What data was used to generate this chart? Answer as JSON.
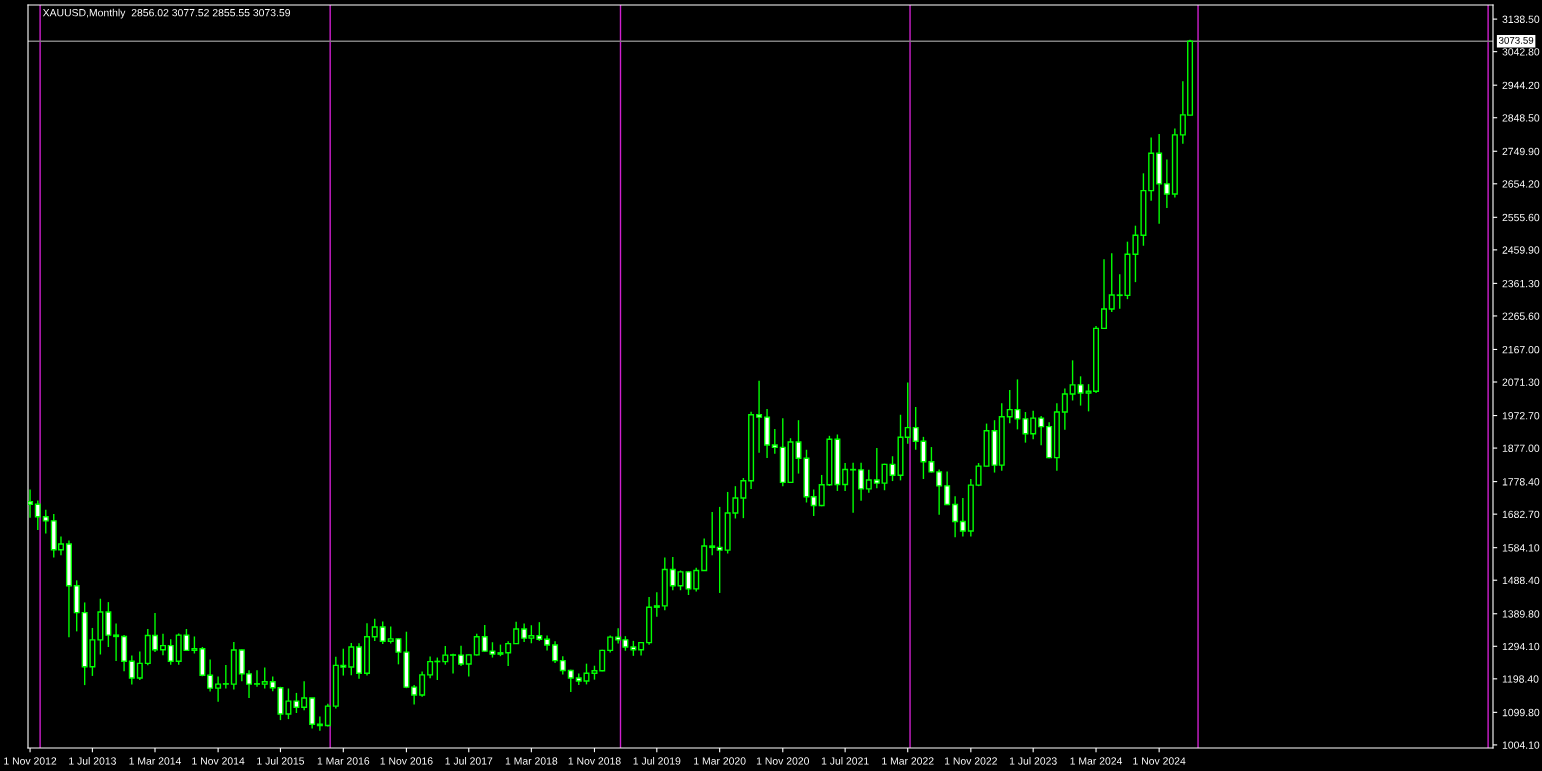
{
  "chart_data": {
    "type": "candlestick",
    "title": "XAUUSD,Monthly  2856.02 3077.52 2855.55 3073.59",
    "color": "#00ff00",
    "grid": false,
    "legend": false,
    "x": [
      "2012-11",
      "2012-12",
      "2013-01",
      "2013-02",
      "2013-03",
      "2013-04",
      "2013-05",
      "2013-06",
      "2013-07",
      "2013-08",
      "2013-09",
      "2013-10",
      "2013-11",
      "2013-12",
      "2014-01",
      "2014-02",
      "2014-03",
      "2014-04",
      "2014-05",
      "2014-06",
      "2014-07",
      "2014-08",
      "2014-09",
      "2014-10",
      "2014-11",
      "2014-12",
      "2015-01",
      "2015-02",
      "2015-03",
      "2015-04",
      "2015-05",
      "2015-06",
      "2015-07",
      "2015-08",
      "2015-09",
      "2015-10",
      "2015-11",
      "2015-12",
      "2016-01",
      "2016-02",
      "2016-03",
      "2016-04",
      "2016-05",
      "2016-06",
      "2016-07",
      "2016-08",
      "2016-09",
      "2016-10",
      "2016-11",
      "2016-12",
      "2017-01",
      "2017-02",
      "2017-03",
      "2017-04",
      "2017-05",
      "2017-06",
      "2017-07",
      "2017-08",
      "2017-09",
      "2017-10",
      "2017-11",
      "2017-12",
      "2018-01",
      "2018-02",
      "2018-03",
      "2018-04",
      "2018-05",
      "2018-06",
      "2018-07",
      "2018-08",
      "2018-09",
      "2018-10",
      "2018-11",
      "2018-12",
      "2019-01",
      "2019-02",
      "2019-03",
      "2019-04",
      "2019-05",
      "2019-06",
      "2019-07",
      "2019-08",
      "2019-09",
      "2019-10",
      "2019-11",
      "2019-12",
      "2020-01",
      "2020-02",
      "2020-03",
      "2020-04",
      "2020-05",
      "2020-06",
      "2020-07",
      "2020-08",
      "2020-09",
      "2020-10",
      "2020-11",
      "2020-12",
      "2021-01",
      "2021-02",
      "2021-03",
      "2021-04",
      "2021-05",
      "2021-06",
      "2021-07",
      "2021-08",
      "2021-09",
      "2021-10",
      "2021-11",
      "2021-12",
      "2022-01",
      "2022-02",
      "2022-03",
      "2022-04",
      "2022-05",
      "2022-06",
      "2022-07",
      "2022-08",
      "2022-09",
      "2022-10",
      "2022-11",
      "2022-12",
      "2023-01",
      "2023-02",
      "2023-03",
      "2023-04",
      "2023-05",
      "2023-06",
      "2023-07",
      "2023-08",
      "2023-09",
      "2023-10",
      "2023-11",
      "2023-12",
      "2024-01",
      "2024-02",
      "2024-03",
      "2024-04",
      "2024-05",
      "2024-06",
      "2024-07",
      "2024-08",
      "2024-09",
      "2024-10",
      "2024-11",
      "2024-12",
      "2025-01",
      "2025-02",
      "2025-03"
    ],
    "ohlc": [
      [
        1719,
        1755,
        1672,
        1712
      ],
      [
        1712,
        1723,
        1636,
        1675
      ],
      [
        1675,
        1696,
        1626,
        1663
      ],
      [
        1663,
        1683,
        1555,
        1578
      ],
      [
        1578,
        1617,
        1562,
        1595
      ],
      [
        1595,
        1605,
        1321,
        1472
      ],
      [
        1472,
        1488,
        1338,
        1393
      ],
      [
        1393,
        1423,
        1180,
        1234
      ],
      [
        1234,
        1348,
        1207,
        1313
      ],
      [
        1313,
        1434,
        1270,
        1395
      ],
      [
        1395,
        1424,
        1292,
        1327
      ],
      [
        1327,
        1361,
        1251,
        1323
      ],
      [
        1323,
        1327,
        1221,
        1250
      ],
      [
        1250,
        1267,
        1182,
        1201
      ],
      [
        1201,
        1279,
        1195,
        1244
      ],
      [
        1244,
        1345,
        1238,
        1326
      ],
      [
        1326,
        1392,
        1277,
        1284
      ],
      [
        1284,
        1331,
        1268,
        1296
      ],
      [
        1296,
        1315,
        1240,
        1250
      ],
      [
        1250,
        1332,
        1240,
        1327
      ],
      [
        1327,
        1345,
        1281,
        1282
      ],
      [
        1282,
        1323,
        1273,
        1287
      ],
      [
        1287,
        1292,
        1206,
        1209
      ],
      [
        1209,
        1255,
        1161,
        1171
      ],
      [
        1171,
        1205,
        1131,
        1183
      ],
      [
        1183,
        1239,
        1170,
        1183
      ],
      [
        1183,
        1307,
        1167,
        1283
      ],
      [
        1283,
        1285,
        1191,
        1213
      ],
      [
        1213,
        1224,
        1142,
        1183
      ],
      [
        1183,
        1224,
        1175,
        1183
      ],
      [
        1183,
        1232,
        1170,
        1190
      ],
      [
        1190,
        1205,
        1162,
        1172
      ],
      [
        1172,
        1175,
        1077,
        1095
      ],
      [
        1095,
        1170,
        1080,
        1133
      ],
      [
        1133,
        1157,
        1098,
        1115
      ],
      [
        1115,
        1191,
        1106,
        1142
      ],
      [
        1142,
        1142,
        1052,
        1065
      ],
      [
        1065,
        1088,
        1046,
        1061
      ],
      [
        1061,
        1125,
        1058,
        1118
      ],
      [
        1118,
        1263,
        1111,
        1238
      ],
      [
        1238,
        1287,
        1208,
        1233
      ],
      [
        1233,
        1304,
        1209,
        1292
      ],
      [
        1292,
        1303,
        1199,
        1215
      ],
      [
        1215,
        1362,
        1208,
        1322
      ],
      [
        1322,
        1375,
        1310,
        1351
      ],
      [
        1351,
        1367,
        1301,
        1309
      ],
      [
        1309,
        1352,
        1302,
        1316
      ],
      [
        1316,
        1318,
        1241,
        1277
      ],
      [
        1277,
        1337,
        1171,
        1174
      ],
      [
        1174,
        1180,
        1123,
        1151
      ],
      [
        1151,
        1220,
        1146,
        1210
      ],
      [
        1210,
        1264,
        1200,
        1249
      ],
      [
        1249,
        1261,
        1195,
        1249
      ],
      [
        1249,
        1295,
        1240,
        1268
      ],
      [
        1268,
        1272,
        1214,
        1268
      ],
      [
        1268,
        1296,
        1236,
        1242
      ],
      [
        1242,
        1270,
        1205,
        1269
      ],
      [
        1269,
        1331,
        1267,
        1322
      ],
      [
        1322,
        1357,
        1278,
        1280
      ],
      [
        1280,
        1306,
        1261,
        1271
      ],
      [
        1271,
        1299,
        1265,
        1275
      ],
      [
        1275,
        1309,
        1236,
        1302
      ],
      [
        1302,
        1366,
        1301,
        1345
      ],
      [
        1345,
        1361,
        1307,
        1318
      ],
      [
        1318,
        1356,
        1303,
        1325
      ],
      [
        1325,
        1365,
        1310,
        1315
      ],
      [
        1315,
        1326,
        1282,
        1298
      ],
      [
        1298,
        1309,
        1245,
        1252
      ],
      [
        1252,
        1265,
        1211,
        1223
      ],
      [
        1223,
        1225,
        1160,
        1201
      ],
      [
        1201,
        1214,
        1180,
        1192
      ],
      [
        1192,
        1243,
        1182,
        1215
      ],
      [
        1215,
        1237,
        1196,
        1222
      ],
      [
        1222,
        1284,
        1221,
        1282
      ],
      [
        1282,
        1326,
        1276,
        1321
      ],
      [
        1321,
        1347,
        1302,
        1313
      ],
      [
        1313,
        1324,
        1281,
        1292
      ],
      [
        1292,
        1310,
        1266,
        1284
      ],
      [
        1284,
        1306,
        1267,
        1305
      ],
      [
        1305,
        1439,
        1299,
        1409
      ],
      [
        1409,
        1453,
        1381,
        1413
      ],
      [
        1413,
        1555,
        1400,
        1520
      ],
      [
        1520,
        1557,
        1459,
        1472
      ],
      [
        1472,
        1517,
        1459,
        1513
      ],
      [
        1513,
        1515,
        1445,
        1463
      ],
      [
        1463,
        1525,
        1455,
        1517
      ],
      [
        1517,
        1611,
        1517,
        1589
      ],
      [
        1589,
        1689,
        1562,
        1585
      ],
      [
        1585,
        1704,
        1451,
        1577
      ],
      [
        1577,
        1748,
        1567,
        1686
      ],
      [
        1686,
        1765,
        1670,
        1730
      ],
      [
        1730,
        1789,
        1671,
        1781
      ],
      [
        1781,
        1984,
        1757,
        1975
      ],
      [
        1975,
        2075,
        1863,
        1968
      ],
      [
        1968,
        1992,
        1848,
        1886
      ],
      [
        1886,
        1933,
        1860,
        1879
      ],
      [
        1879,
        1965,
        1765,
        1776
      ],
      [
        1776,
        1906,
        1775,
        1895
      ],
      [
        1895,
        1959,
        1802,
        1847
      ],
      [
        1847,
        1872,
        1717,
        1734
      ],
      [
        1734,
        1755,
        1677,
        1708
      ],
      [
        1708,
        1798,
        1706,
        1769
      ],
      [
        1769,
        1913,
        1766,
        1903
      ],
      [
        1903,
        1917,
        1751,
        1770
      ],
      [
        1770,
        1833,
        1751,
        1814
      ],
      [
        1814,
        1834,
        1687,
        1813
      ],
      [
        1813,
        1834,
        1722,
        1757
      ],
      [
        1757,
        1813,
        1746,
        1783
      ],
      [
        1783,
        1877,
        1759,
        1774
      ],
      [
        1774,
        1831,
        1753,
        1829
      ],
      [
        1829,
        1853,
        1780,
        1797
      ],
      [
        1797,
        1975,
        1782,
        1909
      ],
      [
        1909,
        2070,
        1890,
        1937
      ],
      [
        1937,
        1998,
        1872,
        1897
      ],
      [
        1897,
        1910,
        1786,
        1837
      ],
      [
        1837,
        1880,
        1805,
        1807
      ],
      [
        1807,
        1814,
        1681,
        1766
      ],
      [
        1766,
        1808,
        1710,
        1711
      ],
      [
        1711,
        1735,
        1615,
        1661
      ],
      [
        1661,
        1730,
        1617,
        1633
      ],
      [
        1633,
        1786,
        1617,
        1768
      ],
      [
        1768,
        1833,
        1765,
        1824
      ],
      [
        1824,
        1949,
        1823,
        1928
      ],
      [
        1928,
        1959,
        1805,
        1827
      ],
      [
        1827,
        2009,
        1810,
        1969
      ],
      [
        1969,
        2048,
        1950,
        1990
      ],
      [
        1990,
        2079,
        1932,
        1963
      ],
      [
        1963,
        1983,
        1893,
        1919
      ],
      [
        1919,
        1987,
        1903,
        1965
      ],
      [
        1965,
        1971,
        1885,
        1940
      ],
      [
        1940,
        1953,
        1847,
        1849
      ],
      [
        1849,
        2009,
        1810,
        1983
      ],
      [
        1983,
        2052,
        1931,
        2036
      ],
      [
        2036,
        2135,
        2017,
        2063
      ],
      [
        2063,
        2088,
        2002,
        2039
      ],
      [
        2039,
        2065,
        1985,
        2044
      ],
      [
        2044,
        2236,
        2039,
        2229
      ],
      [
        2229,
        2432,
        2228,
        2286
      ],
      [
        2286,
        2450,
        2277,
        2327
      ],
      [
        2327,
        2388,
        2287,
        2326
      ],
      [
        2326,
        2484,
        2315,
        2447
      ],
      [
        2447,
        2531,
        2365,
        2503
      ],
      [
        2503,
        2685,
        2472,
        2634
      ],
      [
        2634,
        2790,
        2604,
        2744
      ],
      [
        2744,
        2801,
        2537,
        2654
      ],
      [
        2654,
        2726,
        2583,
        2624
      ],
      [
        2624,
        2817,
        2614,
        2798
      ],
      [
        2798,
        2956,
        2772,
        2857
      ],
      [
        2856.02,
        3077.52,
        2855.55,
        3073.59
      ]
    ],
    "xlim": [
      "2012-10-24",
      "2028-05-20"
    ],
    "xticks": [
      {
        "value": "2012-11",
        "label": "1 Nov 2012"
      },
      {
        "value": "2013-07",
        "label": "1 Jul 2013"
      },
      {
        "value": "2014-03",
        "label": "1 Mar 2014"
      },
      {
        "value": "2014-11",
        "label": "1 Nov 2014"
      },
      {
        "value": "2015-07",
        "label": "1 Jul 2015"
      },
      {
        "value": "2016-03",
        "label": "1 Mar 2016"
      },
      {
        "value": "2016-11",
        "label": "1 Nov 2016"
      },
      {
        "value": "2017-07",
        "label": "1 Jul 2017"
      },
      {
        "value": "2018-03",
        "label": "1 Mar 2018"
      },
      {
        "value": "2018-11",
        "label": "1 Nov 2018"
      },
      {
        "value": "2019-07",
        "label": "1 Jul 2019"
      },
      {
        "value": "2020-03",
        "label": "1 Mar 2020"
      },
      {
        "value": "2020-11",
        "label": "1 Nov 2020"
      },
      {
        "value": "2021-07",
        "label": "1 Jul 2021"
      },
      {
        "value": "2022-03",
        "label": "1 Mar 2022"
      },
      {
        "value": "2022-11",
        "label": "1 Nov 2022"
      },
      {
        "value": "2023-07",
        "label": "1 Jul 2023"
      },
      {
        "value": "2024-03",
        "label": "1 Mar 2024"
      },
      {
        "value": "2024-11",
        "label": "1 Nov 2024"
      }
    ],
    "ylim": [
      995,
      3180
    ],
    "yticks": [
      {
        "value": 1004.1,
        "label": "1004.10"
      },
      {
        "value": 1099.8,
        "label": "1099.80"
      },
      {
        "value": 1198.4,
        "label": "1198.40"
      },
      {
        "value": 1294.1,
        "label": "1294.10"
      },
      {
        "value": 1389.8,
        "label": "1389.80"
      },
      {
        "value": 1488.4,
        "label": "1488.40"
      },
      {
        "value": 1584.1,
        "label": "1584.10"
      },
      {
        "value": 1682.7,
        "label": "1682.70"
      },
      {
        "value": 1778.4,
        "label": "1778.40"
      },
      {
        "value": 1877.0,
        "label": "1877.00"
      },
      {
        "value": 1972.7,
        "label": "1972.70"
      },
      {
        "value": 2071.3,
        "label": "2071.30"
      },
      {
        "value": 2167.0,
        "label": "2167.00"
      },
      {
        "value": 2265.6,
        "label": "2265.60"
      },
      {
        "value": 2361.3,
        "label": "2361.30"
      },
      {
        "value": 2459.9,
        "label": "2459.90"
      },
      {
        "value": 2555.6,
        "label": "2555.60"
      },
      {
        "value": 2654.2,
        "label": "2654.20"
      },
      {
        "value": 2749.9,
        "label": "2749.90"
      },
      {
        "value": 2848.5,
        "label": "2848.50"
      },
      {
        "value": 2944.2,
        "label": "2944.20"
      },
      {
        "value": 3042.8,
        "label": "3042.80"
      },
      {
        "value": 3138.5,
        "label": "3138.50"
      }
    ],
    "ref_lines": [
      {
        "axis": "x",
        "value": "2012-12-10",
        "color": "#d020d0"
      },
      {
        "axis": "x",
        "value": "2016-01-10",
        "color": "#d020d0"
      },
      {
        "axis": "x",
        "value": "2019-02-10",
        "color": "#d020d0"
      },
      {
        "axis": "x",
        "value": "2022-03-10",
        "color": "#d020d0"
      },
      {
        "axis": "x",
        "value": "2025-04",
        "color": "#d020d0"
      },
      {
        "axis": "x",
        "value": "2028-05",
        "color": "#d020d0"
      },
      {
        "axis": "y",
        "value": 3073.59,
        "label": "3073.59",
        "color": "#808080"
      }
    ]
  }
}
